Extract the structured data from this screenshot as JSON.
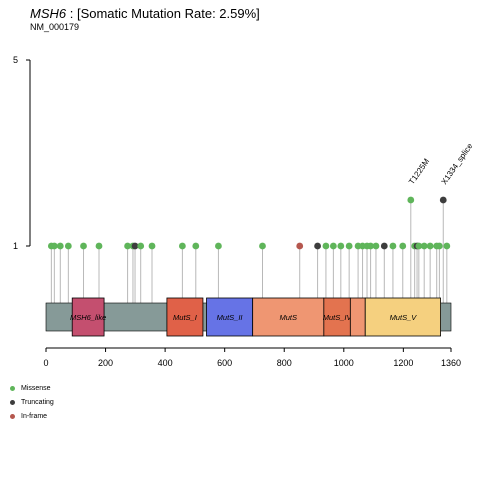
{
  "header": {
    "gene": "MSH6",
    "rate_text": " : [Somatic Mutation Rate: 2.59%]",
    "transcript": "NM_000179"
  },
  "chart_data": {
    "type": "lollipop",
    "protein_length": 1360,
    "x_ticks": [
      0,
      200,
      400,
      600,
      800,
      1000,
      1200,
      1360
    ],
    "y_ticks": [
      1,
      5
    ],
    "y_levels": {
      "low": 1,
      "high": 5
    },
    "backbone_color": "#869a98",
    "domains": [
      {
        "label": "MSH6_like",
        "start": 88,
        "end": 195,
        "color": "#c44f6f"
      },
      {
        "label": "MutS_I",
        "start": 406,
        "end": 527,
        "color": "#e06148"
      },
      {
        "label": "MutS_II",
        "start": 539,
        "end": 694,
        "color": "#6673e6"
      },
      {
        "label": "MutS",
        "start": 694,
        "end": 933,
        "color": "#ef9672"
      },
      {
        "label": "MutS_IV",
        "start": 933,
        "end": 1022,
        "color": "#e3734f"
      },
      {
        "label": "",
        "start": 1022,
        "end": 1072,
        "color": "#ef9672"
      },
      {
        "label": "MutS_V",
        "start": 1072,
        "end": 1325,
        "color": "#f5d07f"
      }
    ],
    "mutations": [
      {
        "pos": 18,
        "count": 1,
        "type": "Missense"
      },
      {
        "pos": 28,
        "count": 1,
        "type": "Missense"
      },
      {
        "pos": 48,
        "count": 1,
        "type": "Missense"
      },
      {
        "pos": 75,
        "count": 1,
        "type": "Missense"
      },
      {
        "pos": 126,
        "count": 1,
        "type": "Missense"
      },
      {
        "pos": 178,
        "count": 1,
        "type": "Missense"
      },
      {
        "pos": 274,
        "count": 1,
        "type": "Missense"
      },
      {
        "pos": 292,
        "count": 1,
        "type": "Missense"
      },
      {
        "pos": 299,
        "count": 1,
        "type": "Truncating"
      },
      {
        "pos": 318,
        "count": 1,
        "type": "Missense"
      },
      {
        "pos": 356,
        "count": 1,
        "type": "Missense"
      },
      {
        "pos": 458,
        "count": 1,
        "type": "Missense"
      },
      {
        "pos": 503,
        "count": 1,
        "type": "Missense"
      },
      {
        "pos": 579,
        "count": 1,
        "type": "Missense"
      },
      {
        "pos": 727,
        "count": 1,
        "type": "Missense"
      },
      {
        "pos": 852,
        "count": 1,
        "type": "In-frame"
      },
      {
        "pos": 912,
        "count": 1,
        "type": "Truncating"
      },
      {
        "pos": 940,
        "count": 1,
        "type": "Missense"
      },
      {
        "pos": 965,
        "count": 1,
        "type": "Missense"
      },
      {
        "pos": 990,
        "count": 1,
        "type": "Missense"
      },
      {
        "pos": 1018,
        "count": 1,
        "type": "Missense"
      },
      {
        "pos": 1048,
        "count": 1,
        "type": "Missense"
      },
      {
        "pos": 1063,
        "count": 1,
        "type": "Missense"
      },
      {
        "pos": 1078,
        "count": 1,
        "type": "Missense"
      },
      {
        "pos": 1090,
        "count": 1,
        "type": "Missense"
      },
      {
        "pos": 1108,
        "count": 1,
        "type": "Missense"
      },
      {
        "pos": 1136,
        "count": 1,
        "type": "Truncating"
      },
      {
        "pos": 1165,
        "count": 1,
        "type": "Missense"
      },
      {
        "pos": 1198,
        "count": 1,
        "type": "Missense"
      },
      {
        "pos": 1225,
        "count": 2,
        "type": "Missense",
        "label": "T1225M"
      },
      {
        "pos": 1238,
        "count": 1,
        "type": "Missense"
      },
      {
        "pos": 1246,
        "count": 1,
        "type": "Truncating"
      },
      {
        "pos": 1252,
        "count": 1,
        "type": "Missense"
      },
      {
        "pos": 1270,
        "count": 1,
        "type": "Missense"
      },
      {
        "pos": 1290,
        "count": 1,
        "type": "Missense"
      },
      {
        "pos": 1312,
        "count": 1,
        "type": "Missense"
      },
      {
        "pos": 1321,
        "count": 1,
        "type": "Missense"
      },
      {
        "pos": 1334,
        "count": 2,
        "type": "Truncating",
        "label": "X1334_splice"
      },
      {
        "pos": 1346,
        "count": 1,
        "type": "Missense"
      }
    ],
    "legend": [
      {
        "label": "Missense",
        "color": "#5fb55a"
      },
      {
        "label": "Truncating",
        "color": "#3d3d3d"
      },
      {
        "label": "In-frame",
        "color": "#b5574e"
      }
    ]
  }
}
